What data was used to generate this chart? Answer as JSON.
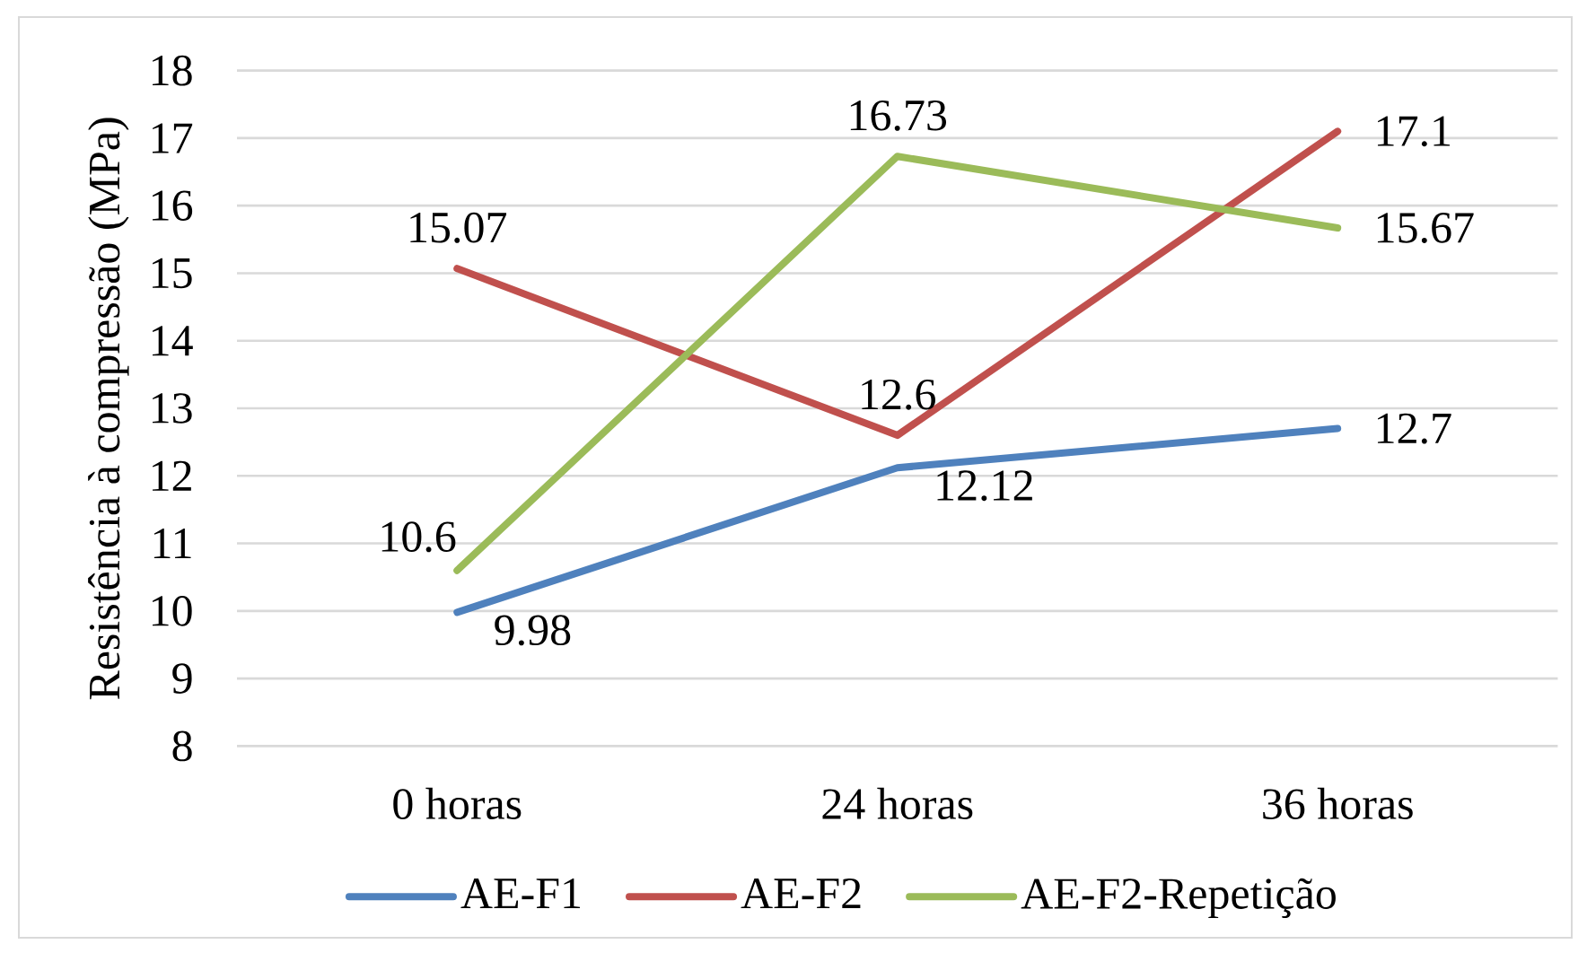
{
  "chart_data": {
    "type": "line",
    "ylabel": "Resistência à compressão (MPa)",
    "categories": [
      "0 horas",
      "24 horas",
      "36 horas"
    ],
    "series": [
      {
        "name": "AE-F1",
        "color": "#4f81bd",
        "values": [
          9.98,
          12.12,
          12.7
        ]
      },
      {
        "name": "AE-F2",
        "color": "#c0504d",
        "values": [
          15.07,
          12.6,
          17.1
        ]
      },
      {
        "name": "AE-F2-Repetição",
        "color": "#9bbb59",
        "values": [
          10.6,
          16.73,
          15.67
        ]
      }
    ],
    "ylim": [
      8,
      18
    ],
    "yticks": [
      8,
      9,
      10,
      11,
      12,
      13,
      14,
      15,
      16,
      17,
      18
    ],
    "grid": "y",
    "legend": "bottom",
    "data_labels": true,
    "line_style": "solid"
  }
}
